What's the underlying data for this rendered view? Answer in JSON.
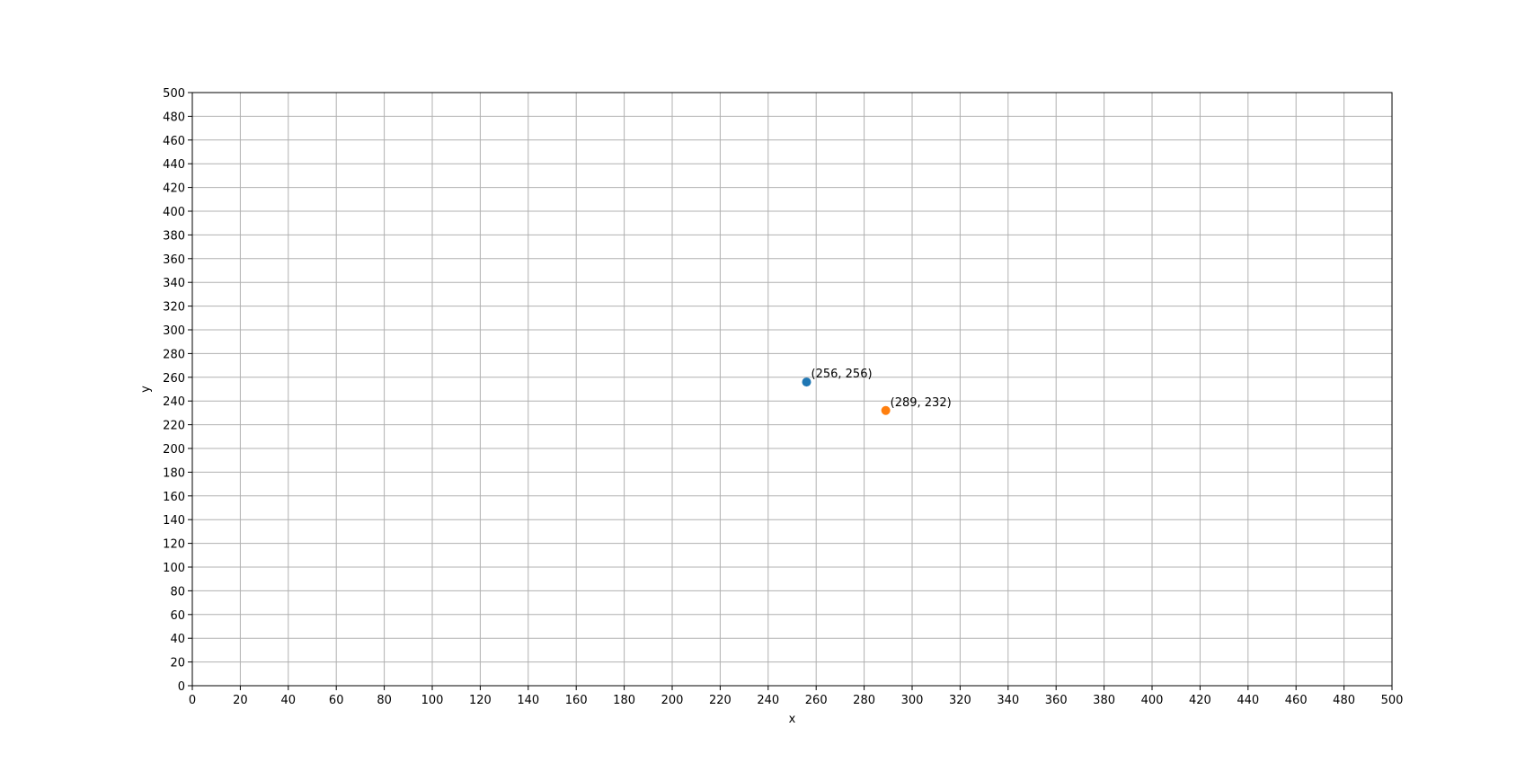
{
  "chart_data": {
    "type": "scatter",
    "title": "",
    "xlabel": "x",
    "ylabel": "y",
    "xlim": [
      0,
      500
    ],
    "ylim": [
      0,
      500
    ],
    "xticks": [
      0,
      20,
      40,
      60,
      80,
      100,
      120,
      140,
      160,
      180,
      200,
      220,
      240,
      260,
      280,
      300,
      320,
      340,
      360,
      380,
      400,
      420,
      440,
      460,
      480,
      500
    ],
    "yticks": [
      0,
      20,
      40,
      60,
      80,
      100,
      120,
      140,
      160,
      180,
      200,
      220,
      240,
      260,
      280,
      300,
      320,
      340,
      360,
      380,
      400,
      420,
      440,
      460,
      480,
      500
    ],
    "grid": true,
    "points": [
      {
        "x": 256,
        "y": 256,
        "label": "(256, 256)",
        "color": "#1f77b4"
      },
      {
        "x": 289,
        "y": 232,
        "label": "(289, 232)",
        "color": "#ff7f0e"
      }
    ],
    "grid_color": "#b0b0b0",
    "axis_color": "#000000"
  }
}
